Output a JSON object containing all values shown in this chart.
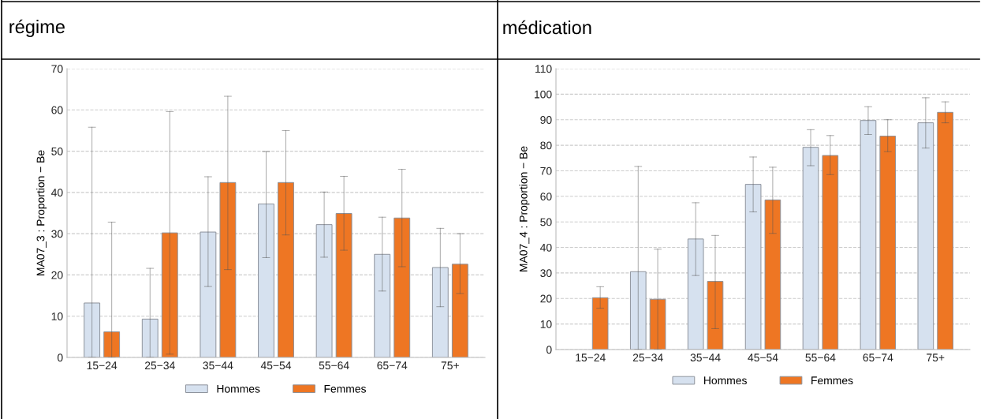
{
  "chart_data": [
    {
      "type": "bar",
      "title": "régime",
      "ylabel": "MA07_3 : Proportion − Be",
      "categories": [
        "15−24",
        "25−34",
        "35−44",
        "45−54",
        "55−64",
        "65−74",
        "75+"
      ],
      "ylim": [
        0,
        70
      ],
      "yticks": [
        0,
        10,
        20,
        30,
        40,
        50,
        60,
        70
      ],
      "grid": "y",
      "legend": "bottom",
      "series": [
        {
          "name": "Hommes",
          "color": "#d6e1ef",
          "values": [
            13.2,
            9.3,
            30.4,
            37.2,
            32.2,
            25.0,
            21.8
          ],
          "errors": [
            [
              0,
              55.8
            ],
            [
              0,
              21.6
            ],
            [
              17.2,
              43.8
            ],
            [
              24.2,
              49.9
            ],
            [
              24.3,
              40.1
            ],
            [
              16.1,
              34.0
            ],
            [
              12.3,
              31.3
            ]
          ]
        },
        {
          "name": "Femmes",
          "color": "#ee7623",
          "values": [
            6.2,
            30.2,
            42.4,
            42.4,
            34.9,
            33.8,
            22.6
          ],
          "errors": [
            [
              0,
              32.8
            ],
            [
              0.8,
              59.6
            ],
            [
              21.3,
              63.3
            ],
            [
              29.7,
              55.0
            ],
            [
              26.0,
              43.9
            ],
            [
              22.0,
              45.6
            ],
            [
              15.5,
              30.0
            ]
          ]
        }
      ]
    },
    {
      "type": "bar",
      "title": "médication",
      "ylabel": "MA07_4 : Proportion − Be",
      "categories": [
        "15−24",
        "25−34",
        "35−44",
        "45−54",
        "55−64",
        "65−74",
        "75+"
      ],
      "ylim": [
        0,
        110
      ],
      "yticks": [
        0,
        10,
        20,
        30,
        40,
        50,
        60,
        70,
        80,
        90,
        100,
        110
      ],
      "grid": "y",
      "legend": "bottom",
      "series": [
        {
          "name": "Hommes",
          "color": "#d6e1ef",
          "values": [
            null,
            30.5,
            43.3,
            64.7,
            79.2,
            89.7,
            88.8
          ],
          "errors": [
            null,
            [
              0,
              71.7
            ],
            [
              29.0,
              57.5
            ],
            [
              53.9,
              75.4
            ],
            [
              72.0,
              86.1
            ],
            [
              84.2,
              95.1
            ],
            [
              78.9,
              98.6
            ]
          ]
        },
        {
          "name": "Femmes",
          "color": "#ee7623",
          "values": [
            20.3,
            19.7,
            26.7,
            58.6,
            76.0,
            83.6,
            92.9
          ],
          "errors": [
            [
              16.2,
              24.6
            ],
            [
              0,
              39.3
            ],
            [
              8.2,
              44.7
            ],
            [
              45.5,
              71.4
            ],
            [
              68.5,
              83.8
            ],
            [
              77.5,
              90.0
            ],
            [
              88.8,
              97.0
            ]
          ]
        }
      ]
    }
  ]
}
